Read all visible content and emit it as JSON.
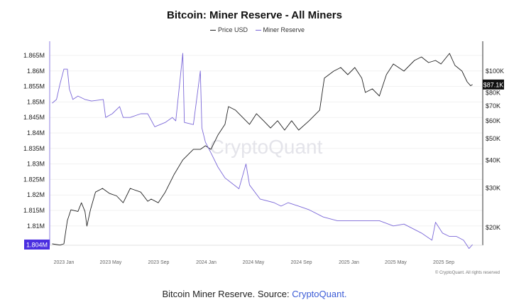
{
  "caption": {
    "text": "Bitcoin Miner Reserve. Source: ",
    "link": "CryptoQuant."
  },
  "chart_data": {
    "type": "line",
    "title": "Bitcoin: Miner Reserve - All Miners",
    "watermark": "CryptoQuant",
    "copyright": "© CryptoQuant. All rights reserved",
    "legend_placement": "top-center",
    "grid": true,
    "x_ticks": [
      "2023 Jan",
      "2023 May",
      "2023 Sep",
      "2024 Jan",
      "2024 May",
      "2024 Sep",
      "2025 Jan",
      "2025 May",
      "2025 Sep"
    ],
    "x_tick_dates": [
      "2023-01-01",
      "2023-05-01",
      "2023-09-01",
      "2024-01-01",
      "2024-05-01",
      "2024-09-01",
      "2025-01-01",
      "2025-05-01",
      "2025-09-01"
    ],
    "left_axis": {
      "ticks": [
        "1.81M",
        "1.815M",
        "1.82M",
        "1.825M",
        "1.83M",
        "1.835M",
        "1.84M",
        "1.845M",
        "1.85M",
        "1.855M",
        "1.86M",
        "1.865M"
      ],
      "tick_values": [
        1.81,
        1.815,
        1.82,
        1.825,
        1.83,
        1.835,
        1.84,
        1.845,
        1.85,
        1.855,
        1.86,
        1.865
      ],
      "current_label": "1.804M",
      "current_value": 1.804,
      "unit": "M BTC"
    },
    "right_axis": {
      "scale": "log",
      "ticks": [
        "$20K",
        "$30K",
        "$40K",
        "$50K",
        "$60K",
        "$70K",
        "$80K",
        "$100K"
      ],
      "tick_values": [
        20,
        30,
        40,
        50,
        60,
        70,
        80,
        100
      ],
      "current_label": "$87.1K",
      "current_value": 87.1,
      "unit": "K USD"
    },
    "series": [
      {
        "name": "Price USD",
        "color": "#222222",
        "axis": "right",
        "points": [
          [
            "2022-12-02",
            16.9
          ],
          [
            "2022-12-22",
            16.7
          ],
          [
            "2023-01-01",
            16.9
          ],
          [
            "2023-01-10",
            21.5
          ],
          [
            "2023-01-19",
            24.0
          ],
          [
            "2023-02-06",
            23.6
          ],
          [
            "2023-02-15",
            25.8
          ],
          [
            "2023-02-24",
            23.6
          ],
          [
            "2023-03-01",
            20.3
          ],
          [
            "2023-03-10",
            24.0
          ],
          [
            "2023-03-23",
            28.8
          ],
          [
            "2023-04-10",
            29.9
          ],
          [
            "2023-04-28",
            28.4
          ],
          [
            "2023-05-16",
            27.7
          ],
          [
            "2023-06-02",
            25.8
          ],
          [
            "2023-06-20",
            29.9
          ],
          [
            "2023-07-17",
            28.8
          ],
          [
            "2023-08-04",
            26.2
          ],
          [
            "2023-08-13",
            26.8
          ],
          [
            "2023-08-31",
            25.8
          ],
          [
            "2023-09-18",
            28.8
          ],
          [
            "2023-10-11",
            34.6
          ],
          [
            "2023-11-02",
            40.1
          ],
          [
            "2023-11-29",
            44.7
          ],
          [
            "2023-12-17",
            44.7
          ],
          [
            "2023-12-30",
            46.4
          ],
          [
            "2024-01-13",
            44.7
          ],
          [
            "2024-01-31",
            51.8
          ],
          [
            "2024-02-18",
            57.8
          ],
          [
            "2024-02-27",
            69.4
          ],
          [
            "2024-03-16",
            66.9
          ],
          [
            "2024-04-03",
            62.2
          ],
          [
            "2024-04-21",
            57.8
          ],
          [
            "2024-05-09",
            64.5
          ],
          [
            "2024-05-27",
            60.0
          ],
          [
            "2024-06-14",
            55.7
          ],
          [
            "2024-07-02",
            60.0
          ],
          [
            "2024-07-20",
            54.5
          ],
          [
            "2024-08-07",
            60.0
          ],
          [
            "2024-08-25",
            54.5
          ],
          [
            "2024-09-21",
            60.0
          ],
          [
            "2024-10-18",
            66.9
          ],
          [
            "2024-10-30",
            93.0
          ],
          [
            "2024-11-23",
            100.0
          ],
          [
            "2024-12-11",
            103.7
          ],
          [
            "2024-12-29",
            96.4
          ],
          [
            "2025-01-16",
            103.7
          ],
          [
            "2025-02-03",
            93.0
          ],
          [
            "2025-02-12",
            80.3
          ],
          [
            "2025-03-02",
            83.3
          ],
          [
            "2025-03-20",
            77.4
          ],
          [
            "2025-04-07",
            96.4
          ],
          [
            "2025-04-25",
            107.6
          ],
          [
            "2025-05-22",
            100.0
          ],
          [
            "2025-06-18",
            111.6
          ],
          [
            "2025-07-06",
            115.7
          ],
          [
            "2025-07-24",
            109.2
          ],
          [
            "2025-08-11",
            111.6
          ],
          [
            "2025-08-25",
            107.6
          ],
          [
            "2025-09-16",
            120.0
          ],
          [
            "2025-09-30",
            106.0
          ],
          [
            "2025-10-18",
            100.0
          ],
          [
            "2025-10-31",
            89.6
          ],
          [
            "2025-11-09",
            86.0
          ],
          [
            "2025-11-14",
            87.1
          ]
        ]
      },
      {
        "name": "Miner Reserve",
        "color": "#7b68d8",
        "axis": "left",
        "points": [
          [
            "2022-12-02",
            1.8496
          ],
          [
            "2022-12-13",
            1.8508
          ],
          [
            "2022-12-22",
            1.8558
          ],
          [
            "2023-01-01",
            1.8606
          ],
          [
            "2023-01-10",
            1.8606
          ],
          [
            "2023-01-15",
            1.8542
          ],
          [
            "2023-01-24",
            1.8508
          ],
          [
            "2023-02-06",
            1.8519
          ],
          [
            "2023-02-24",
            1.8508
          ],
          [
            "2023-03-13",
            1.8503
          ],
          [
            "2023-04-12",
            1.8508
          ],
          [
            "2023-04-18",
            1.845
          ],
          [
            "2023-05-05",
            1.8462
          ],
          [
            "2023-05-24",
            1.8485
          ],
          [
            "2023-06-02",
            1.845
          ],
          [
            "2023-06-20",
            1.845
          ],
          [
            "2023-07-17",
            1.8462
          ],
          [
            "2023-08-04",
            1.8462
          ],
          [
            "2023-08-22",
            1.842
          ],
          [
            "2023-09-18",
            1.8434
          ],
          [
            "2023-10-06",
            1.845
          ],
          [
            "2023-10-15",
            1.8439
          ],
          [
            "2023-11-02",
            1.8657
          ],
          [
            "2023-11-06",
            1.8434
          ],
          [
            "2023-11-29",
            1.8427
          ],
          [
            "2023-12-17",
            1.86
          ],
          [
            "2023-12-21",
            1.8416
          ],
          [
            "2023-12-30",
            1.837
          ],
          [
            "2024-01-13",
            1.8336
          ],
          [
            "2024-01-31",
            1.829
          ],
          [
            "2024-02-18",
            1.8255
          ],
          [
            "2024-03-25",
            1.822
          ],
          [
            "2024-04-12",
            1.83
          ],
          [
            "2024-04-21",
            1.8232
          ],
          [
            "2024-05-18",
            1.8187
          ],
          [
            "2024-06-23",
            1.8175
          ],
          [
            "2024-07-11",
            1.8164
          ],
          [
            "2024-07-29",
            1.8175
          ],
          [
            "2024-08-25",
            1.8164
          ],
          [
            "2024-09-21",
            1.8152
          ],
          [
            "2024-10-27",
            1.8129
          ],
          [
            "2024-12-02",
            1.8117
          ],
          [
            "2025-01-07",
            1.8117
          ],
          [
            "2025-02-12",
            1.8117
          ],
          [
            "2025-03-20",
            1.8117
          ],
          [
            "2025-04-25",
            1.81
          ],
          [
            "2025-05-22",
            1.8106
          ],
          [
            "2025-07-06",
            1.8077
          ],
          [
            "2025-08-02",
            1.8054
          ],
          [
            "2025-08-11",
            1.8112
          ],
          [
            "2025-08-29",
            1.8077
          ],
          [
            "2025-09-16",
            1.8066
          ],
          [
            "2025-10-04",
            1.8066
          ],
          [
            "2025-10-22",
            1.8054
          ],
          [
            "2025-11-05",
            1.8027
          ],
          [
            "2025-11-14",
            1.804
          ]
        ]
      }
    ]
  }
}
